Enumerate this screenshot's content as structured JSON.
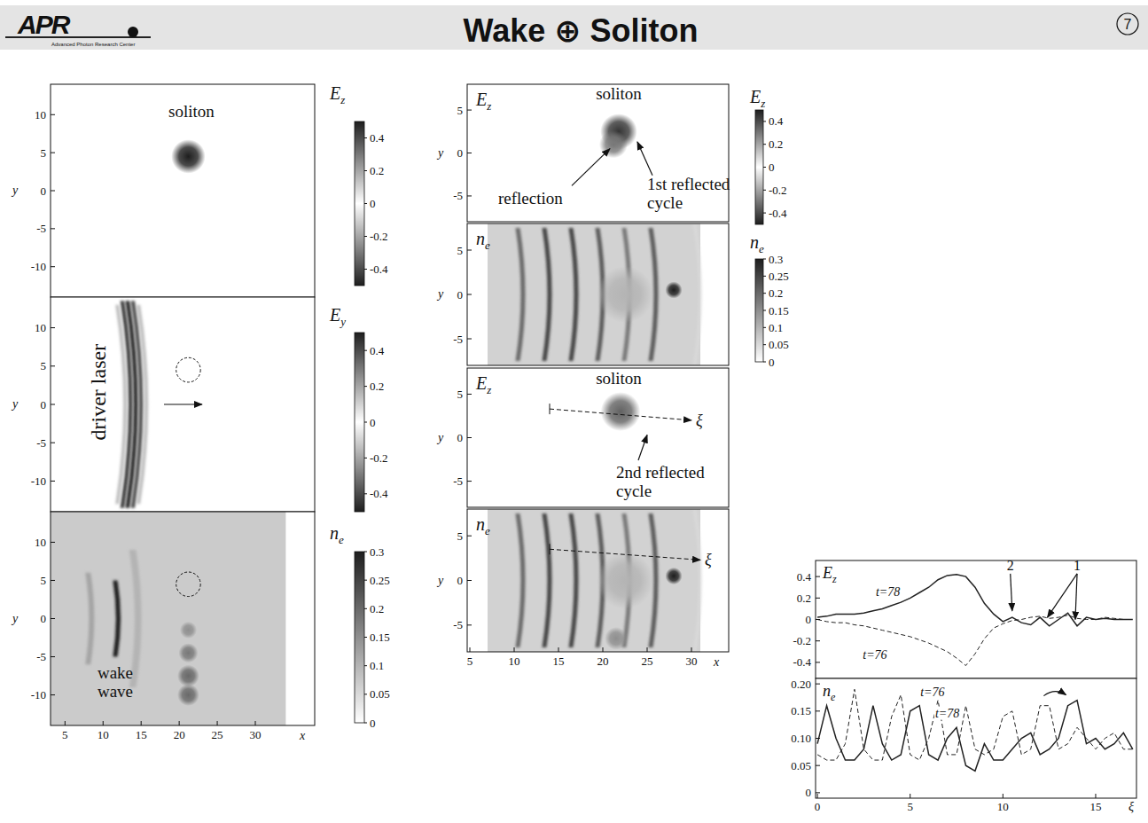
{
  "header": {
    "logo": "APR",
    "logo_subtitle": "Advanced Photon Research Center",
    "title": "Wake ⊕ Soliton",
    "page": "7"
  },
  "chart_data": [
    {
      "type": "heatmap",
      "xlim": [
        3.1,
        37.8
      ],
      "ylim": [
        -14,
        14
      ],
      "yticks": [
        10,
        5,
        0,
        -5,
        -10
      ],
      "tick_labels": "y",
      "y_label": "y",
      "colorbar": {
        "label": {
          "symbol": "E",
          "subscript": "z"
        },
        "range": [
          -0.5,
          0.5
        ],
        "ticks": [
          0.4,
          0.2,
          0,
          -0.2,
          -0.4
        ]
      },
      "blobs": [
        {
          "x": 21.2,
          "y": 4.5,
          "r": 1.4,
          "value": -0.5
        }
      ],
      "annotations": [
        {
          "text": "soliton",
          "x": 21.6,
          "y": 9.7
        }
      ]
    },
    {
      "type": "heatmap",
      "xlim": [
        3.1,
        37.8
      ],
      "ylim": [
        -14,
        14
      ],
      "yticks": [
        10,
        5,
        0,
        -5,
        -10
      ],
      "tick_labels": "y",
      "y_label": "y",
      "colorbar": {
        "label": {
          "symbol": "E",
          "subscript": "y"
        },
        "range": [
          -0.5,
          0.5
        ],
        "ticks": [
          0.4,
          0.2,
          0,
          -0.2,
          -0.4
        ]
      },
      "stripes": [
        {
          "x": 12.9,
          "y0": -13,
          "y1": 13,
          "width": 0.45,
          "value": 0.15
        },
        {
          "x": 13.6,
          "y0": -13.5,
          "y1": 13.5,
          "width": 0.5,
          "value": -0.45
        },
        {
          "x": 14.3,
          "y0": -13.5,
          "y1": 13.5,
          "width": 0.5,
          "value": 0.5
        },
        {
          "x": 15.0,
          "y0": -13.5,
          "y1": 13.5,
          "width": 0.5,
          "value": -0.4
        },
        {
          "x": 15.7,
          "y0": -13,
          "y1": 13,
          "width": 0.45,
          "value": 0.15
        }
      ],
      "circles": [
        {
          "x": 21.2,
          "y": 4.5,
          "r": 1.6
        }
      ],
      "arrows": [
        {
          "from": [
            18,
            0
          ],
          "to": [
            23,
            0
          ]
        }
      ],
      "annotations": [
        {
          "text": "driver laser",
          "x": 9.7,
          "y": 1.6,
          "orientation": "vertical"
        }
      ]
    },
    {
      "type": "heatmap",
      "xlim": [
        3.1,
        37.8
      ],
      "ylim": [
        -14,
        14
      ],
      "yticks": [
        10,
        5,
        0,
        -5,
        -10
      ],
      "xticks": [
        5,
        10,
        15,
        20,
        25,
        30
      ],
      "y_label": "y",
      "x_label": "x",
      "colorbar": {
        "label": {
          "symbol": "n",
          "subscript": "e"
        },
        "range": [
          0,
          0.3
        ],
        "ticks": [
          0.3,
          0.25,
          0.2,
          0.15,
          0.1,
          0.05,
          0
        ]
      },
      "background": {
        "x0": 3.1,
        "x1": 34,
        "value": 0.07
      },
      "stripes": [
        {
          "x": 8.5,
          "y0": -6,
          "y1": 6,
          "width": 0.7,
          "value": 0.12
        },
        {
          "x": 12,
          "y0": -5,
          "y1": 5,
          "width": 0.6,
          "value": 0.3
        },
        {
          "x": 14.6,
          "y0": -9,
          "y1": 9,
          "width": 0.9,
          "value": 0.1
        }
      ],
      "blobs": [
        {
          "x": 21.2,
          "y": -1.5,
          "r": 0.7,
          "value": 0.15
        },
        {
          "x": 21.2,
          "y": -4.5,
          "r": 0.8,
          "value": 0.18
        },
        {
          "x": 21.2,
          "y": -7.5,
          "r": 0.9,
          "value": 0.2
        },
        {
          "x": 21.2,
          "y": -10,
          "r": 0.9,
          "value": 0.2
        }
      ],
      "circles": [
        {
          "x": 21.2,
          "y": 4.5,
          "r": 1.6
        }
      ],
      "annotations": [
        {
          "text_lines": [
            "wake",
            "wave"
          ],
          "x": 11.6,
          "y": -7.8
        }
      ]
    },
    {
      "type": "heatmap",
      "xlim": [
        4.7,
        34.2
      ],
      "ylim": [
        -8,
        8
      ],
      "yticks": [
        5,
        0,
        -5
      ],
      "tick_labels": "y",
      "y_label": "y",
      "label": {
        "symbol": "E",
        "subscript": "z"
      },
      "colorbar": {
        "label": {
          "symbol": "E",
          "subscript": "z"
        },
        "range": [
          -0.5,
          0.5
        ],
        "ticks": [
          0.4,
          0.2,
          0,
          -0.2,
          -0.4
        ]
      },
      "blobs": [
        {
          "x": 21.8,
          "y": 2.5,
          "r": 1.3,
          "value": 0.45
        },
        {
          "x": 21.2,
          "y": 1,
          "r": 1,
          "value": 0.3
        }
      ],
      "arrows": [
        {
          "from": [
            16.5,
            -3.8
          ],
          "to": [
            20.8,
            0.5
          ]
        },
        {
          "from": [
            25.6,
            -2.6
          ],
          "to": [
            23.9,
            1.3
          ]
        }
      ],
      "annotations": [
        {
          "text": "soliton",
          "x": 21.8,
          "y": 6.2
        },
        {
          "text": "reflection",
          "x": 8.2,
          "y": -5.9
        },
        {
          "text_lines": [
            "1st reflected",
            "cycle"
          ],
          "x": 25.0,
          "y": -4.3
        }
      ]
    },
    {
      "type": "heatmap",
      "xlim": [
        4.7,
        34.2
      ],
      "ylim": [
        -8,
        8
      ],
      "yticks": [
        5,
        0,
        -5
      ],
      "tick_labels": "y",
      "y_label": "y",
      "label": {
        "symbol": "n",
        "subscript": "e"
      },
      "colorbar": {
        "label": {
          "symbol": "n",
          "subscript": "e"
        },
        "range": [
          0,
          0.3
        ],
        "ticks": [
          0.3,
          0.25,
          0.2,
          0.15,
          0.1,
          0.05,
          0
        ]
      },
      "background": {
        "x0": 7,
        "x1": 31,
        "value": 0.06
      },
      "stripes": [
        {
          "x": 11,
          "y0": -7.5,
          "y1": 7.5,
          "width": 0.5,
          "value": 0.2
        },
        {
          "x": 14,
          "y0": -7.5,
          "y1": 7.5,
          "width": 0.5,
          "value": 0.25
        },
        {
          "x": 17,
          "y0": -7.5,
          "y1": 7.5,
          "width": 0.5,
          "value": 0.25
        },
        {
          "x": 20,
          "y0": -7.5,
          "y1": 7.5,
          "width": 0.5,
          "value": 0.22
        },
        {
          "x": 23,
          "y0": -7.5,
          "y1": 7.5,
          "width": 0.5,
          "value": 0.18
        },
        {
          "x": 26,
          "y0": -7.5,
          "y1": 7.5,
          "width": 0.5,
          "value": 0.22
        },
        {
          "x": 31,
          "y0": -8,
          "y1": 8,
          "width": 0.3,
          "value": 0.05
        }
      ],
      "blobs": [
        {
          "x": 28,
          "y": 0.5,
          "r": 0.6,
          "value": 0.3
        },
        {
          "x": 22.5,
          "y": 0,
          "r": 2,
          "value": 0.1
        }
      ]
    },
    {
      "type": "heatmap",
      "xlim": [
        4.7,
        34.2
      ],
      "ylim": [
        -8,
        8
      ],
      "yticks": [
        5,
        0,
        -5
      ],
      "tick_labels": "y",
      "y_label": "y",
      "label": {
        "symbol": "E",
        "subscript": "z"
      },
      "blobs": [
        {
          "x": 22,
          "y": 3,
          "r": 1.4,
          "value": 0.35
        }
      ],
      "arrows": [
        {
          "from": [
            24,
            -2.6
          ],
          "to": [
            25,
            0.3
          ]
        }
      ],
      "lines": [
        {
          "from": [
            14,
            3.3
          ],
          "to": [
            30,
            2
          ],
          "label": "ξ"
        }
      ],
      "annotations": [
        {
          "text": "soliton",
          "x": 21.8,
          "y": 6.2
        },
        {
          "text_lines": [
            "2nd reflected",
            "cycle"
          ],
          "x": 21.5,
          "y": -4.6
        }
      ]
    },
    {
      "type": "heatmap",
      "xlim": [
        4.7,
        34.2
      ],
      "ylim": [
        -8,
        8
      ],
      "yticks": [
        5,
        0,
        -5
      ],
      "xticks": [
        5,
        10,
        15,
        20,
        25,
        30
      ],
      "y_label": "y",
      "x_label": "x",
      "label": {
        "symbol": "n",
        "subscript": "e"
      },
      "background": {
        "x0": 7,
        "x1": 31,
        "value": 0.06
      },
      "stripes": [
        {
          "x": 11,
          "y0": -7.5,
          "y1": 7.5,
          "width": 0.5,
          "value": 0.2
        },
        {
          "x": 14,
          "y0": -7.5,
          "y1": 7.5,
          "width": 0.5,
          "value": 0.25
        },
        {
          "x": 17,
          "y0": -7.5,
          "y1": 7.5,
          "width": 0.5,
          "value": 0.25
        },
        {
          "x": 20,
          "y0": -7.5,
          "y1": 7.5,
          "width": 0.5,
          "value": 0.22
        },
        {
          "x": 23,
          "y0": -7.5,
          "y1": 7.5,
          "width": 0.5,
          "value": 0.18
        },
        {
          "x": 26,
          "y0": -7.5,
          "y1": 7.5,
          "width": 0.5,
          "value": 0.22
        },
        {
          "x": 31,
          "y0": -8,
          "y1": 8,
          "width": 0.3,
          "value": 0.05
        }
      ],
      "blobs": [
        {
          "x": 28,
          "y": 0.5,
          "r": 0.6,
          "value": 0.3
        },
        {
          "x": 22.5,
          "y": 0,
          "r": 2,
          "value": 0.1
        },
        {
          "x": 21.5,
          "y": -6.5,
          "r": 0.8,
          "value": 0.15
        }
      ],
      "lines": [
        {
          "from": [
            14,
            3.5
          ],
          "to": [
            31,
            2.3
          ],
          "label": "ξ"
        }
      ]
    },
    {
      "type": "line",
      "label": {
        "symbol": "E",
        "subscript": "z"
      },
      "x": [
        0,
        0.5,
        1,
        1.5,
        2,
        2.5,
        3,
        3.5,
        4,
        4.5,
        5,
        5.5,
        6,
        6.5,
        7,
        7.5,
        8,
        8.5,
        9,
        9.5,
        10,
        10.5,
        11,
        11.5,
        12,
        12.5,
        13,
        13.5,
        14,
        14.5,
        15,
        15.5,
        16,
        16.5,
        17
      ],
      "xlim": [
        -0.1,
        17.2
      ],
      "ylim": [
        -0.55,
        0.55
      ],
      "yticks": [
        0.4,
        0.2,
        0,
        -0.2,
        -0.4
      ],
      "tick_labels": "y",
      "series": [
        {
          "name": "t=78",
          "line_style": "solid",
          "label_at": [
            3.8,
            0.22
          ],
          "values": [
            0.02,
            0.03,
            0.05,
            0.05,
            0.05,
            0.06,
            0.08,
            0.1,
            0.13,
            0.16,
            0.2,
            0.25,
            0.3,
            0.37,
            0.41,
            0.42,
            0.4,
            0.3,
            0.15,
            0.05,
            -0.02,
            0.02,
            -0.03,
            -0.05,
            0.02,
            -0.06,
            0.0,
            0.06,
            -0.06,
            0.02,
            0.0,
            0.01,
            0.0,
            0.0,
            0.0
          ]
        },
        {
          "name": "t=76",
          "line_style": "dashed",
          "label_at": [
            3.1,
            -0.37
          ],
          "values": [
            0.0,
            -0.02,
            -0.03,
            -0.03,
            -0.05,
            -0.06,
            -0.08,
            -0.1,
            -0.12,
            -0.14,
            -0.16,
            -0.19,
            -0.22,
            -0.26,
            -0.3,
            -0.36,
            -0.43,
            -0.32,
            -0.18,
            -0.08,
            -0.04,
            -0.01,
            0.0,
            0.02,
            0.03,
            0.01,
            0.02,
            0.04,
            0.01,
            0.0,
            0.0,
            0.02,
            0.01,
            0.0,
            0.0
          ]
        }
      ],
      "annotations": [
        {
          "text": "2",
          "x": 10.4,
          "y": 0.46,
          "targets": [
            [
              10.5,
              0.08
            ]
          ]
        },
        {
          "text": "1",
          "x": 14.0,
          "y": 0.46,
          "targets": [
            [
              12.4,
              0.02
            ],
            [
              13.9,
              0.0
            ]
          ]
        }
      ]
    },
    {
      "type": "line",
      "label": {
        "symbol": "n",
        "subscript": "e"
      },
      "x": [
        0,
        0.5,
        1,
        1.5,
        2,
        2.5,
        3,
        3.5,
        4,
        4.5,
        5,
        5.5,
        6,
        6.5,
        7,
        7.5,
        8,
        8.5,
        9,
        9.5,
        10,
        10.5,
        11,
        11.5,
        12,
        12.5,
        13,
        13.5,
        14,
        14.5,
        15,
        15.5,
        16,
        16.5,
        17
      ],
      "xlim": [
        -0.1,
        17.2
      ],
      "ylim": [
        -0.01,
        0.21
      ],
      "yticks": [
        0,
        0.05,
        {
          "value": 0.1,
          "label": "0.10"
        },
        0.15,
        {
          "value": 0.2,
          "label": "0.20"
        }
      ],
      "xticks": [
        0,
        5,
        10,
        15
      ],
      "x_label": "ξ",
      "series": [
        {
          "name": "t=78",
          "line_style": "solid",
          "label_at": [
            7.0,
            0.139
          ],
          "values": [
            0.09,
            0.16,
            0.1,
            0.06,
            0.06,
            0.08,
            0.16,
            0.09,
            0.06,
            0.07,
            0.15,
            0.16,
            0.07,
            0.06,
            0.1,
            0.12,
            0.05,
            0.04,
            0.09,
            0.06,
            0.06,
            0.08,
            0.1,
            0.11,
            0.07,
            0.08,
            0.1,
            0.16,
            0.17,
            0.09,
            0.1,
            0.08,
            0.09,
            0.11,
            0.08
          ]
        },
        {
          "name": "t=76",
          "line_style": "dashed",
          "label_at": [
            6.2,
            0.178
          ],
          "values": [
            0.07,
            0.06,
            0.06,
            0.09,
            0.19,
            0.08,
            0.06,
            0.06,
            0.14,
            0.18,
            0.07,
            0.06,
            0.1,
            0.17,
            0.07,
            0.07,
            0.16,
            0.08,
            0.07,
            0.08,
            0.14,
            0.15,
            0.07,
            0.08,
            0.16,
            0.16,
            0.08,
            0.09,
            0.12,
            0.1,
            0.08,
            0.1,
            0.11,
            0.08,
            0.08
          ]
        }
      ],
      "arrows": [
        {
          "from": [
            12.2,
            0.178
          ],
          "to": [
            13.4,
            0.18
          ]
        }
      ]
    }
  ]
}
